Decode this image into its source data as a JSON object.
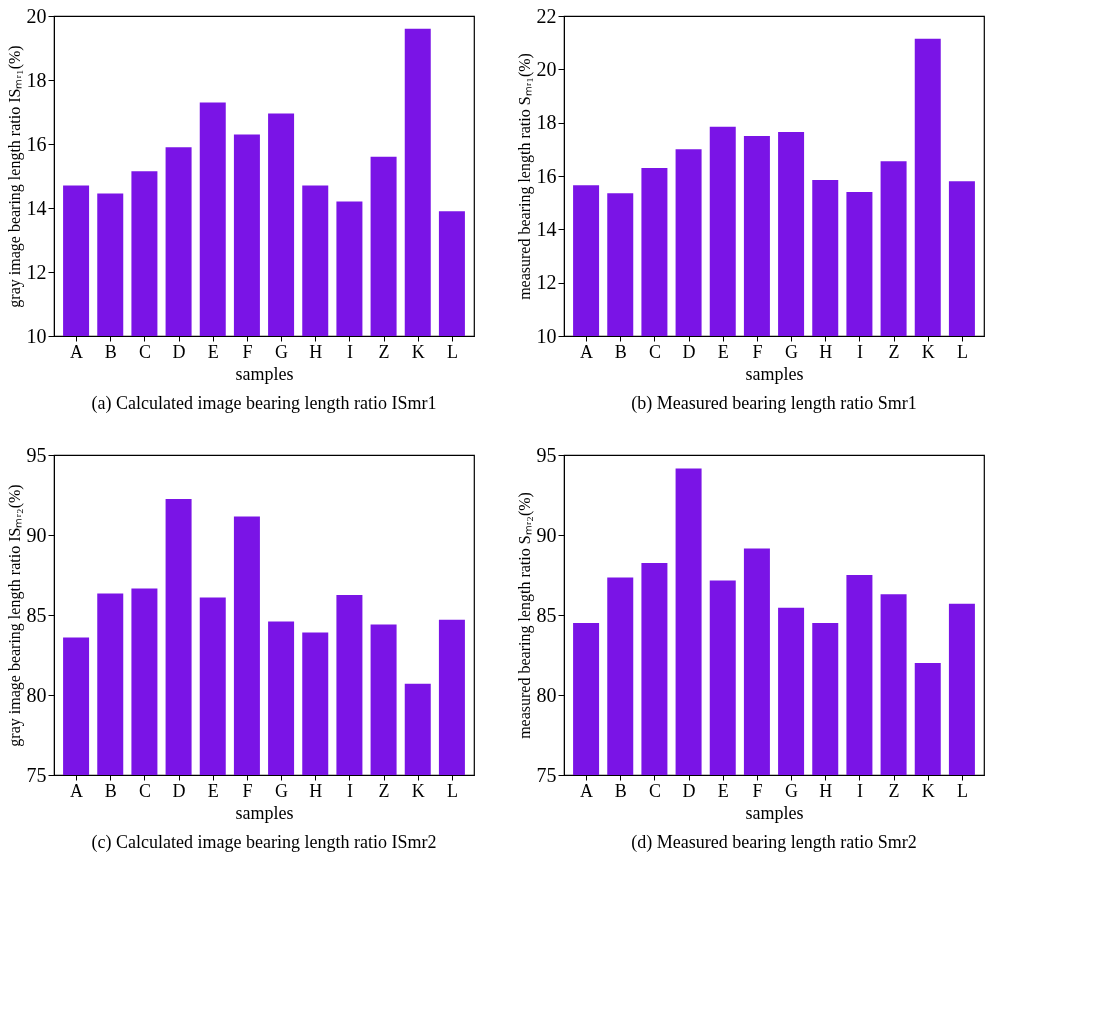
{
  "chart_data": [
    {
      "type": "bar",
      "title": "(a) Calculated image bearing length ratio ISmr1",
      "xlabel": "samples",
      "ylabel": "gray image bearing length ratio ISₘᵣ₁(%)",
      "categories": [
        "A",
        "B",
        "C",
        "D",
        "E",
        "F",
        "G",
        "H",
        "I",
        "Z",
        "K",
        "L"
      ],
      "values": [
        14.7,
        14.45,
        15.15,
        15.9,
        17.3,
        16.3,
        16.95,
        14.7,
        14.2,
        15.6,
        19.6,
        13.9
      ],
      "color": "#7a14e6",
      "ylim": [
        10,
        20
      ],
      "yticks": [
        10,
        12,
        14,
        16,
        18,
        20
      ],
      "grid": false
    },
    {
      "type": "bar",
      "title": "(b) Measured bearing length ratio Smr1",
      "xlabel": "samples",
      "ylabel": "measured bearing length ratio Sₘᵣ₁(%)",
      "categories": [
        "A",
        "B",
        "C",
        "D",
        "E",
        "F",
        "G",
        "H",
        "I",
        "Z",
        "K",
        "L"
      ],
      "values": [
        15.65,
        15.35,
        16.3,
        17.0,
        17.85,
        17.5,
        17.65,
        15.85,
        15.4,
        16.55,
        21.15,
        15.8
      ],
      "color": "#7a14e6",
      "ylim": [
        10,
        22
      ],
      "yticks": [
        10,
        12,
        14,
        16,
        18,
        20,
        22
      ],
      "grid": false
    },
    {
      "type": "bar",
      "title": "(c) Calculated image bearing length ratio ISmr2",
      "xlabel": "samples",
      "ylabel": "gray image bearing length ratio ISₘᵣ₂(%)",
      "categories": [
        "A",
        "B",
        "C",
        "D",
        "E",
        "F",
        "G",
        "H",
        "I",
        "Z",
        "K",
        "L"
      ],
      "values": [
        83.6,
        86.35,
        86.65,
        92.25,
        86.1,
        91.15,
        84.6,
        83.9,
        86.25,
        84.4,
        80.7,
        84.7
      ],
      "color": "#7a14e6",
      "ylim": [
        75,
        95
      ],
      "yticks": [
        75,
        80,
        85,
        90,
        95
      ],
      "grid": false
    },
    {
      "type": "bar",
      "title": "(d) Measured bearing length ratio Smr2",
      "xlabel": "samples",
      "ylabel": "measured bearing length ratio Sₘᵣ₂(%)",
      "categories": [
        "A",
        "B",
        "C",
        "D",
        "E",
        "F",
        "G",
        "H",
        "I",
        "Z",
        "K",
        "L"
      ],
      "values": [
        84.5,
        87.35,
        88.25,
        94.15,
        87.15,
        89.15,
        85.45,
        84.5,
        87.5,
        86.3,
        82.0,
        85.7
      ],
      "color": "#7a14e6",
      "ylim": [
        75,
        95
      ],
      "yticks": [
        75,
        80,
        85,
        90,
        95
      ],
      "grid": false
    }
  ]
}
